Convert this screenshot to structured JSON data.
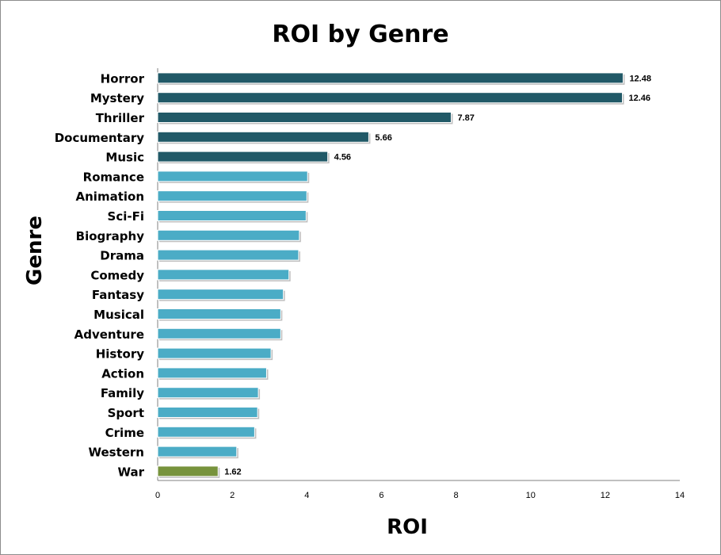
{
  "chart_data": {
    "type": "bar",
    "orientation": "horizontal",
    "title": "ROI by Genre",
    "xlabel": "ROI",
    "ylabel": "Genre",
    "xlim": [
      0,
      14
    ],
    "xticks": [
      0,
      2,
      4,
      6,
      8,
      10,
      12,
      14
    ],
    "grid": false,
    "categories": [
      "Horror",
      "Mystery",
      "Thriller",
      "Documentary",
      "Music",
      "Romance",
      "Animation",
      "Sci-Fi",
      "Biography",
      "Drama",
      "Comedy",
      "Fantasy",
      "Musical",
      "Adventure",
      "History",
      "Action",
      "Family",
      "Sport",
      "Crime",
      "Western",
      "War"
    ],
    "values": [
      12.48,
      12.46,
      7.87,
      5.66,
      4.56,
      4.02,
      4.0,
      3.98,
      3.8,
      3.78,
      3.52,
      3.37,
      3.3,
      3.3,
      3.04,
      2.92,
      2.7,
      2.68,
      2.6,
      2.12,
      1.62
    ],
    "data_labels": [
      "12.48",
      "12.46",
      "7.87",
      "5.66",
      "4.56",
      "",
      "",
      "",
      "",
      "",
      "",
      "",
      "",
      "",
      "",
      "",
      "",
      "",
      "",
      "",
      "1.62"
    ],
    "colors": {
      "top": "#215967",
      "middle": "#4bacc6",
      "bottom": "#77933c"
    },
    "bar_groups": [
      "top",
      "top",
      "top",
      "top",
      "top",
      "middle",
      "middle",
      "middle",
      "middle",
      "middle",
      "middle",
      "middle",
      "middle",
      "middle",
      "middle",
      "middle",
      "middle",
      "middle",
      "middle",
      "middle",
      "bottom"
    ]
  }
}
